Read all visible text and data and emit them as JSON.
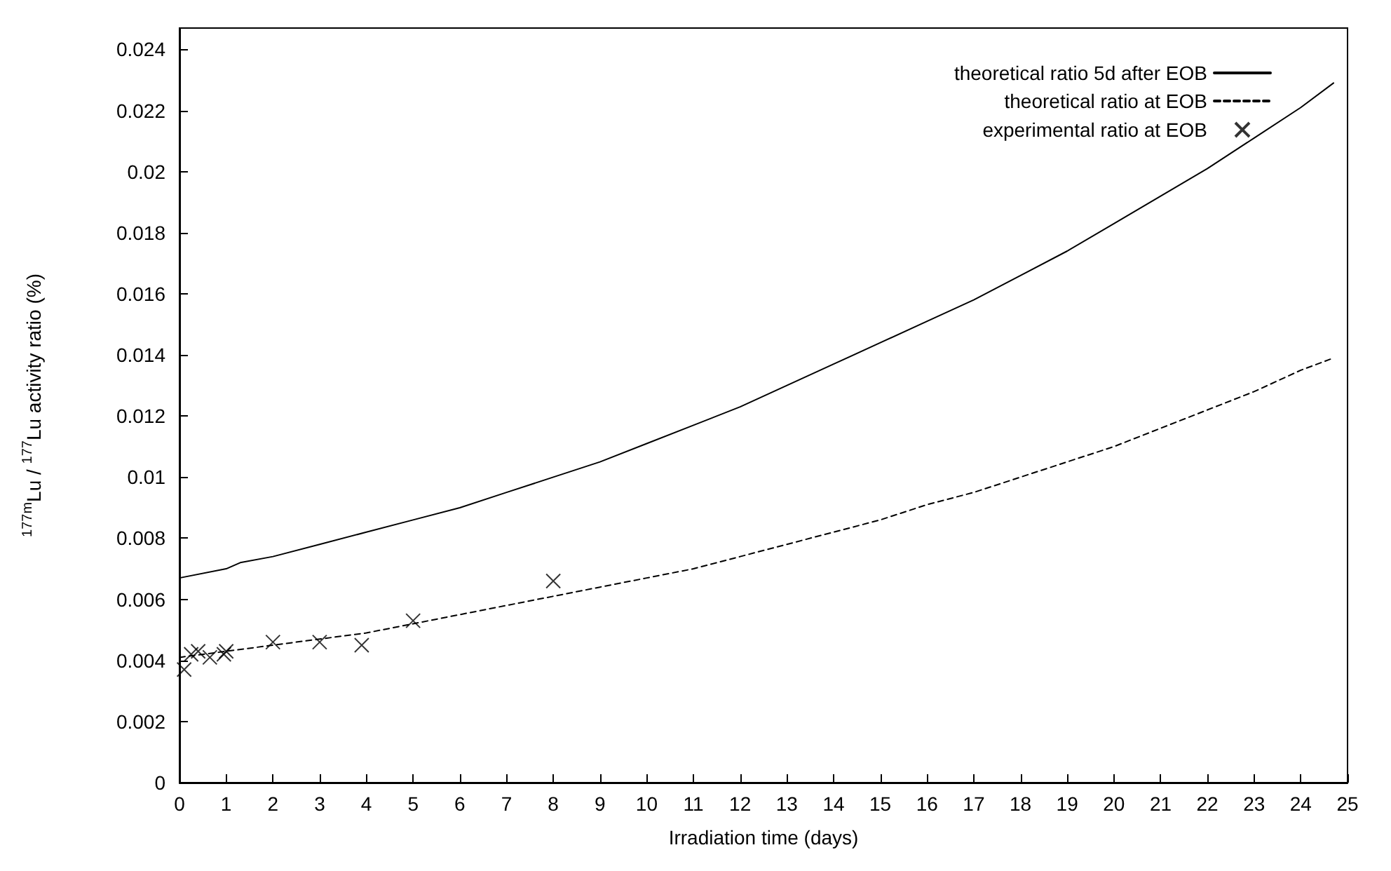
{
  "chart_data": {
    "type": "line",
    "xlabel": "Irradiation time (days)",
    "ylabel": "$^{177m}$Lu / $^{177}$Lu activity ratio (%)",
    "xlim": [
      0,
      25
    ],
    "xticks": [
      0,
      1,
      2,
      3,
      4,
      5,
      6,
      7,
      8,
      9,
      10,
      11,
      12,
      13,
      14,
      15,
      16,
      17,
      18,
      19,
      20,
      21,
      22,
      23,
      24,
      25
    ],
    "ylim": [
      0,
      0.0247
    ],
    "yticks": [
      0,
      0.002,
      0.004,
      0.006,
      0.008,
      0.01,
      0.012,
      0.014,
      0.016,
      0.018,
      0.02,
      0.022,
      0.024
    ],
    "grid": false,
    "legend": "top right",
    "series": [
      {
        "name": "theoretical ratio 5d after EOB",
        "color": "#000000",
        "line_style": "solid",
        "marker": "none",
        "x": [
          0,
          1,
          1.3,
          2,
          3,
          4,
          5,
          6,
          7,
          8,
          9,
          10,
          11,
          12,
          13,
          14,
          15,
          16,
          17,
          18,
          19,
          20,
          21,
          22,
          23,
          24,
          24.7
        ],
        "values": [
          0.0067,
          0.007,
          0.0072,
          0.0074,
          0.0078,
          0.0082,
          0.0086,
          0.009,
          0.0095,
          0.01,
          0.0105,
          0.0111,
          0.0117,
          0.0123,
          0.013,
          0.0137,
          0.0144,
          0.0151,
          0.0158,
          0.0166,
          0.0174,
          0.0183,
          0.0192,
          0.0201,
          0.0211,
          0.0221,
          0.0229
        ]
      },
      {
        "name": "theoretical ratio at EOB",
        "color": "#000000",
        "line_style": "dashed",
        "marker": "none",
        "x": [
          0,
          1,
          2,
          3,
          4,
          5,
          6,
          7,
          8,
          9,
          10,
          11,
          12,
          13,
          14,
          15,
          16,
          17,
          18,
          19,
          20,
          21,
          22,
          23,
          24,
          24.7
        ],
        "values": [
          0.0041,
          0.0043,
          0.0045,
          0.0047,
          0.0049,
          0.0052,
          0.0055,
          0.0058,
          0.0061,
          0.0064,
          0.0067,
          0.007,
          0.0074,
          0.0078,
          0.0082,
          0.0086,
          0.0091,
          0.0095,
          0.01,
          0.0105,
          0.011,
          0.0116,
          0.0122,
          0.0128,
          0.0135,
          0.0139
        ]
      },
      {
        "name": "experimental ratio at EOB",
        "type": "scatter",
        "color": "#000000",
        "marker": "cross",
        "x": [
          0.1,
          0.25,
          0.4,
          0.65,
          0.95,
          1.0,
          2,
          3,
          3.9,
          5,
          8
        ],
        "values": [
          0.0037,
          0.0042,
          0.0043,
          0.0041,
          0.0042,
          0.0043,
          0.0046,
          0.0046,
          0.0045,
          0.0053,
          0.0066
        ]
      }
    ]
  }
}
